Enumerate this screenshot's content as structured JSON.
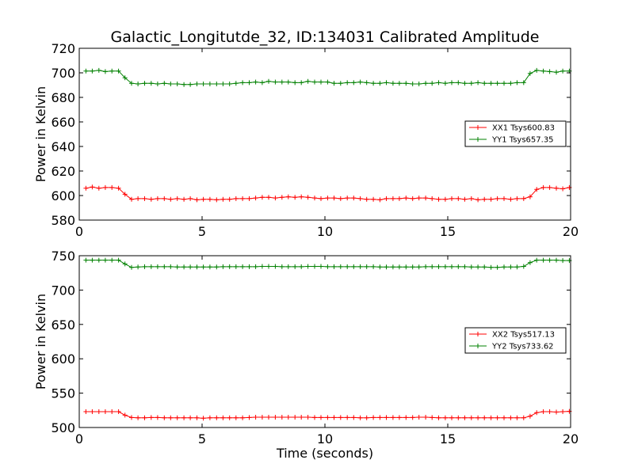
{
  "title": "Galactic_Longitutde_32, ID:134031 Calibrated Amplitude",
  "colors": {
    "red": "#ff0000",
    "green": "#008000"
  },
  "chart_data": [
    {
      "type": "line",
      "title": "Galactic_Longitutde_32, ID:134031 Calibrated Amplitude",
      "xlabel": "",
      "ylabel": "Power in Kelvin",
      "xlim": [
        0,
        20
      ],
      "ylim": [
        580,
        720
      ],
      "xticks": [
        "0",
        "5",
        "10",
        "15",
        "20"
      ],
      "yticks": [
        "580",
        "600",
        "620",
        "640",
        "660",
        "680",
        "700",
        "720"
      ],
      "legend": "center-right",
      "grid": false,
      "series": [
        {
          "name": "XX1 Tsys600.83",
          "color": "#ff0000",
          "x": [
            0.27,
            0.53,
            0.8,
            1.06,
            1.33,
            1.6,
            1.86,
            2.13,
            2.39,
            2.66,
            2.93,
            3.19,
            3.46,
            3.72,
            3.99,
            4.26,
            4.52,
            4.79,
            5.05,
            5.32,
            5.59,
            5.85,
            6.12,
            6.38,
            6.65,
            6.92,
            7.18,
            7.45,
            7.71,
            7.98,
            8.25,
            8.51,
            8.78,
            9.04,
            9.31,
            9.58,
            9.84,
            10.11,
            10.37,
            10.64,
            10.91,
            11.17,
            11.44,
            11.7,
            11.97,
            12.24,
            12.5,
            12.77,
            13.03,
            13.3,
            13.57,
            13.83,
            14.1,
            14.36,
            14.63,
            14.9,
            15.16,
            15.43,
            15.69,
            15.96,
            16.23,
            16.49,
            16.76,
            17.02,
            17.29,
            17.56,
            17.82,
            18.09,
            18.35,
            18.62,
            18.89,
            19.15,
            19.42,
            19.68,
            19.95
          ],
          "y": [
            606,
            607,
            606,
            606.5,
            606.5,
            606,
            601,
            597,
            597.5,
            597.5,
            597,
            597.5,
            597.5,
            597,
            597.5,
            597,
            597.5,
            596.5,
            597,
            597,
            596.5,
            597,
            597,
            597.5,
            597.5,
            597.5,
            598,
            598.5,
            598.5,
            598,
            598.5,
            599,
            598.5,
            599,
            598.5,
            598,
            597.5,
            598,
            598,
            597.5,
            598,
            598,
            597.5,
            597,
            597,
            596.5,
            597.5,
            597.5,
            597.5,
            598,
            597.5,
            598,
            598,
            597.5,
            597,
            597,
            597.5,
            597.5,
            597,
            597.5,
            596.5,
            597,
            597,
            597.5,
            597.5,
            597,
            597.5,
            597.5,
            599,
            605,
            606.5,
            606.5,
            606,
            605.5,
            606.5
          ]
        },
        {
          "name": "YY1 Tsys657.35",
          "color": "#008000",
          "x": [
            0.27,
            0.53,
            0.8,
            1.06,
            1.33,
            1.6,
            1.86,
            2.13,
            2.39,
            2.66,
            2.93,
            3.19,
            3.46,
            3.72,
            3.99,
            4.26,
            4.52,
            4.79,
            5.05,
            5.32,
            5.59,
            5.85,
            6.12,
            6.38,
            6.65,
            6.92,
            7.18,
            7.45,
            7.71,
            7.98,
            8.25,
            8.51,
            8.78,
            9.04,
            9.31,
            9.58,
            9.84,
            10.11,
            10.37,
            10.64,
            10.91,
            11.17,
            11.44,
            11.7,
            11.97,
            12.24,
            12.5,
            12.77,
            13.03,
            13.3,
            13.57,
            13.83,
            14.1,
            14.36,
            14.63,
            14.9,
            15.16,
            15.43,
            15.69,
            15.96,
            16.23,
            16.49,
            16.76,
            17.02,
            17.29,
            17.56,
            17.82,
            18.09,
            18.35,
            18.62,
            18.89,
            19.15,
            19.42,
            19.68,
            19.95
          ],
          "y": [
            701.5,
            701.5,
            702,
            701,
            701.5,
            701.5,
            696,
            691.5,
            691,
            691.5,
            691.5,
            691,
            691.5,
            691,
            691,
            690.5,
            690.5,
            691,
            691,
            691,
            691,
            691,
            691,
            691.5,
            692,
            692,
            692.5,
            692,
            693,
            692.5,
            692.5,
            692.5,
            692,
            692,
            693,
            692.5,
            692.5,
            692.5,
            691.5,
            691.5,
            692,
            692,
            692.5,
            692,
            691.5,
            691.5,
            692,
            691.5,
            691.5,
            691.5,
            691,
            691,
            691.5,
            691.5,
            692,
            691.5,
            692,
            692,
            691.5,
            691.5,
            692,
            691.5,
            691.5,
            691.5,
            691.5,
            691.5,
            692,
            692,
            699.5,
            702,
            701.5,
            701,
            700.5,
            701.5,
            701.5
          ]
        }
      ]
    },
    {
      "type": "line",
      "title": "",
      "xlabel": "Time (seconds)",
      "ylabel": "Power in Kelvin",
      "xlim": [
        0,
        20
      ],
      "ylim": [
        500,
        750
      ],
      "xticks": [
        "0",
        "5",
        "10",
        "15",
        "20"
      ],
      "yticks": [
        "500",
        "550",
        "600",
        "650",
        "700",
        "750"
      ],
      "legend": "center-right",
      "grid": false,
      "series": [
        {
          "name": "XX2 Tsys517.13",
          "color": "#ff0000",
          "x": [
            0.27,
            0.53,
            0.8,
            1.06,
            1.33,
            1.6,
            1.86,
            2.13,
            2.39,
            2.66,
            2.93,
            3.19,
            3.46,
            3.72,
            3.99,
            4.26,
            4.52,
            4.79,
            5.05,
            5.32,
            5.59,
            5.85,
            6.12,
            6.38,
            6.65,
            6.92,
            7.18,
            7.45,
            7.71,
            7.98,
            8.25,
            8.51,
            8.78,
            9.04,
            9.31,
            9.58,
            9.84,
            10.11,
            10.37,
            10.64,
            10.91,
            11.17,
            11.44,
            11.7,
            11.97,
            12.24,
            12.5,
            12.77,
            13.03,
            13.3,
            13.57,
            13.83,
            14.1,
            14.36,
            14.63,
            14.9,
            15.16,
            15.43,
            15.69,
            15.96,
            16.23,
            16.49,
            16.76,
            17.02,
            17.29,
            17.56,
            17.82,
            18.09,
            18.35,
            18.62,
            18.89,
            19.15,
            19.42,
            19.68,
            19.95
          ],
          "y": [
            523,
            523,
            523,
            523,
            523,
            523,
            518,
            514.5,
            514,
            514,
            514.5,
            514.5,
            514,
            514,
            514,
            514,
            514,
            514,
            513.5,
            514,
            514,
            514,
            514,
            514,
            514,
            514.5,
            515,
            515,
            515,
            515,
            515,
            515,
            515,
            515,
            515,
            514.5,
            514.5,
            514.5,
            514.5,
            514.5,
            514.5,
            514.5,
            514,
            514,
            514.5,
            514.5,
            514.5,
            514.5,
            514.5,
            514.5,
            514.5,
            515,
            515,
            514.5,
            514,
            514,
            514,
            514,
            514,
            514,
            514,
            514,
            514,
            514,
            514,
            514,
            514,
            514,
            516.5,
            521.5,
            523,
            523,
            522.5,
            523,
            523.5
          ]
        },
        {
          "name": "YY2 Tsys733.62",
          "color": "#008000",
          "x": [
            0.27,
            0.53,
            0.8,
            1.06,
            1.33,
            1.6,
            1.86,
            2.13,
            2.39,
            2.66,
            2.93,
            3.19,
            3.46,
            3.72,
            3.99,
            4.26,
            4.52,
            4.79,
            5.05,
            5.32,
            5.59,
            5.85,
            6.12,
            6.38,
            6.65,
            6.92,
            7.18,
            7.45,
            7.71,
            7.98,
            8.25,
            8.51,
            8.78,
            9.04,
            9.31,
            9.58,
            9.84,
            10.11,
            10.37,
            10.64,
            10.91,
            11.17,
            11.44,
            11.7,
            11.97,
            12.24,
            12.5,
            12.77,
            13.03,
            13.3,
            13.57,
            13.83,
            14.1,
            14.36,
            14.63,
            14.9,
            15.16,
            15.43,
            15.69,
            15.96,
            16.23,
            16.49,
            16.76,
            17.02,
            17.29,
            17.56,
            17.82,
            18.09,
            18.35,
            18.62,
            18.89,
            19.15,
            19.42,
            19.68,
            19.95
          ],
          "y": [
            743.5,
            743.5,
            743.5,
            743.5,
            743.5,
            743.5,
            738,
            733,
            733.5,
            734,
            734,
            734,
            734,
            734,
            733.5,
            733.5,
            733.5,
            733.5,
            733.5,
            733.5,
            733.5,
            734,
            734,
            734,
            734,
            734,
            734,
            734.5,
            734.5,
            734.5,
            734,
            734,
            734,
            734,
            734.5,
            734.5,
            734.5,
            734,
            734,
            734,
            734,
            734,
            734,
            734,
            734,
            733.5,
            733.5,
            733.5,
            733.5,
            733.5,
            733.5,
            733.5,
            734,
            734,
            734,
            734,
            734,
            734,
            734,
            733.5,
            733.5,
            733.5,
            733,
            733,
            733.5,
            733.5,
            733.5,
            734.5,
            740,
            743.5,
            743.5,
            743.5,
            743.5,
            743,
            743
          ]
        }
      ]
    }
  ]
}
